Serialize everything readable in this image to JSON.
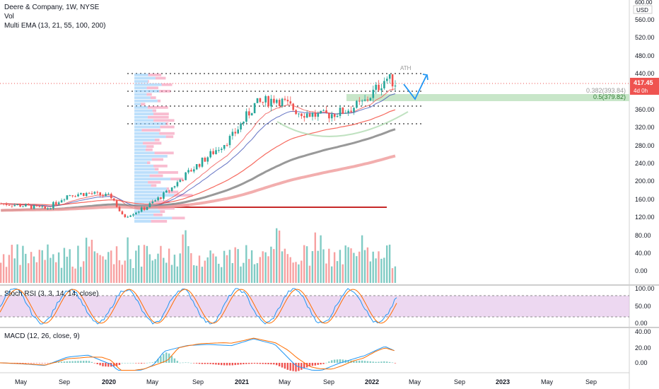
{
  "header": {
    "title": "Deere & Company, 1W, NYSE",
    "vol_label": "Vol",
    "ema_label": "Multi EMA (13, 21, 55, 100, 200)"
  },
  "price_scale": {
    "unit_top": "600.00",
    "currency": "USD",
    "ticks": [
      "560.00",
      "520.00",
      "480.00",
      "440.00",
      "360.00",
      "320.00",
      "280.00",
      "240.00",
      "200.00",
      "160.00",
      "120.00",
      "80.00",
      "40.00",
      "0.00"
    ],
    "current_price": "417.45",
    "countdown": "4d 0h"
  },
  "fib": {
    "level_0382": "0.382(393.84)",
    "level_05": "0.5(379.82)"
  },
  "annotations": {
    "ath": "ATH"
  },
  "stoch_rsi": {
    "label": "Stoch RSI (3, 3, 14, 14, close)",
    "ticks": [
      "100.00",
      "50.00",
      "0.00"
    ]
  },
  "macd": {
    "label": "MACD (12, 26, close, 9)",
    "ticks": [
      "40.00",
      "20.00",
      "0.00"
    ]
  },
  "time_axis": [
    "May",
    "Sep",
    "2020",
    "May",
    "Sep",
    "2021",
    "May",
    "Sep",
    "2022",
    "May",
    "Sep",
    "2023",
    "May",
    "Sep"
  ],
  "colors": {
    "up": "#26a69a",
    "down": "#ef5350",
    "up_vol": "#80cbc4",
    "down_vol": "#f7a1a1",
    "ema13": "#ef5350",
    "ema21": "#3f51b5",
    "ema55": "#f44336",
    "ema100": "#808080",
    "ema200": "#ef9a9a",
    "stoch_band": "#e1bee7",
    "price_label": "#ef5350",
    "fib_zone": "#a5d6a7",
    "projection": "#2196f3"
  },
  "chart_data": {
    "type": "candlestick",
    "title": "Deere & Company, 1W, NYSE",
    "x_range": [
      "2019-04",
      "2023-10"
    ],
    "y_range": [
      0,
      600
    ],
    "grid": false,
    "last_price": 417.45,
    "all_time_high": 446,
    "horizontal_levels": [
      440,
      400,
      363,
      325,
      140
    ],
    "fib_levels": [
      {
        "ratio": 0.382,
        "price": 393.84
      },
      {
        "ratio": 0.5,
        "price": 379.82
      }
    ],
    "price_path": [
      {
        "date": "2019-04",
        "close": 150
      },
      {
        "date": "2019-06",
        "close": 145
      },
      {
        "date": "2019-08",
        "close": 138
      },
      {
        "date": "2019-10",
        "close": 170
      },
      {
        "date": "2019-12",
        "close": 173
      },
      {
        "date": "2020-02",
        "close": 165
      },
      {
        "date": "2020-03",
        "close": 120
      },
      {
        "date": "2020-05",
        "close": 140
      },
      {
        "date": "2020-07",
        "close": 175
      },
      {
        "date": "2020-09",
        "close": 220
      },
      {
        "date": "2020-11",
        "close": 260
      },
      {
        "date": "2021-01",
        "close": 300
      },
      {
        "date": "2021-03",
        "close": 370
      },
      {
        "date": "2021-05",
        "close": 385
      },
      {
        "date": "2021-07",
        "close": 355
      },
      {
        "date": "2021-09",
        "close": 345
      },
      {
        "date": "2021-11",
        "close": 355
      },
      {
        "date": "2022-01",
        "close": 375
      },
      {
        "date": "2022-03",
        "close": 430
      },
      {
        "date": "2022-04",
        "close": 417.45
      }
    ],
    "stoch_rsi_range": [
      0,
      100
    ],
    "stoch_rsi_bands": [
      80,
      20
    ],
    "macd_range": [
      -10,
      40
    ]
  }
}
